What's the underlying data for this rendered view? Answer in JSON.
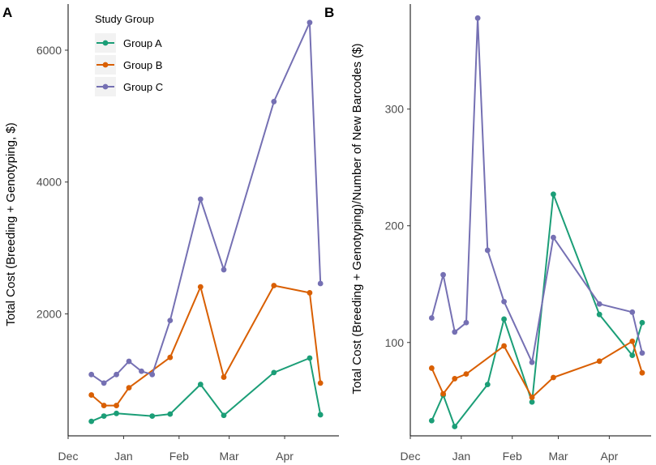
{
  "chart_data": [
    {
      "panel": "A",
      "type": "line",
      "title": "",
      "xlabel": "",
      "ylabel": "Total Cost (Breeding + Genotyping, $)",
      "x_ticks": [
        "Dec",
        "Jan",
        "Feb",
        "Mar",
        "Apr"
      ],
      "x_tick_days": [
        0,
        31,
        62,
        90,
        121
      ],
      "ylim": [
        150,
        6700
      ],
      "y_ticks": [
        2000,
        4000,
        6000
      ],
      "legend": {
        "title": "Study Group",
        "position": "top-left"
      },
      "series": [
        {
          "name": "Group A",
          "color": "#1b9e77",
          "x": [
            13,
            20,
            27,
            47,
            57,
            74,
            87,
            115,
            135,
            141
          ],
          "y": [
            370,
            450,
            490,
            450,
            480,
            930,
            460,
            1110,
            1330,
            470
          ]
        },
        {
          "name": "Group B",
          "color": "#d95f02",
          "x": [
            13,
            20,
            27,
            34,
            57,
            74,
            87,
            115,
            135,
            141
          ],
          "y": [
            770,
            610,
            610,
            880,
            1340,
            2410,
            1040,
            2430,
            2320,
            950
          ]
        },
        {
          "name": "Group C",
          "color": "#7570b3",
          "x": [
            13,
            20,
            27,
            34,
            41,
            47,
            57,
            74,
            87,
            115,
            135,
            141
          ],
          "y": [
            1080,
            950,
            1080,
            1280,
            1130,
            1080,
            1900,
            3740,
            2670,
            5220,
            6420,
            2460
          ]
        }
      ]
    },
    {
      "panel": "B",
      "type": "line",
      "title": "",
      "xlabel": "",
      "ylabel": "Total Cost (Breeding + Genotyping)/Number of New Barcodes ($)",
      "x_ticks": [
        "Dec",
        "Jan",
        "Feb",
        "Mar",
        "Apr"
      ],
      "x_tick_days": [
        0,
        31,
        62,
        90,
        121
      ],
      "ylim": [
        20,
        390
      ],
      "y_ticks": [
        100,
        200,
        300
      ],
      "series": [
        {
          "name": "Group A",
          "color": "#1b9e77",
          "x": [
            13,
            20,
            27,
            47,
            57,
            74,
            87,
            115,
            135,
            141
          ],
          "y": [
            33,
            55,
            28,
            64,
            120,
            49,
            227,
            124,
            89,
            117
          ]
        },
        {
          "name": "Group B",
          "color": "#d95f02",
          "x": [
            13,
            20,
            27,
            34,
            57,
            74,
            87,
            115,
            135,
            141
          ],
          "y": [
            78,
            56,
            69,
            73,
            97,
            53,
            70,
            84,
            101,
            74
          ]
        },
        {
          "name": "Group C",
          "color": "#7570b3",
          "x": [
            13,
            20,
            27,
            34,
            41,
            47,
            57,
            74,
            87,
            115,
            135,
            141
          ],
          "y": [
            121,
            158,
            109,
            117,
            378,
            179,
            135,
            83,
            190,
            133,
            126,
            91
          ]
        }
      ]
    }
  ]
}
